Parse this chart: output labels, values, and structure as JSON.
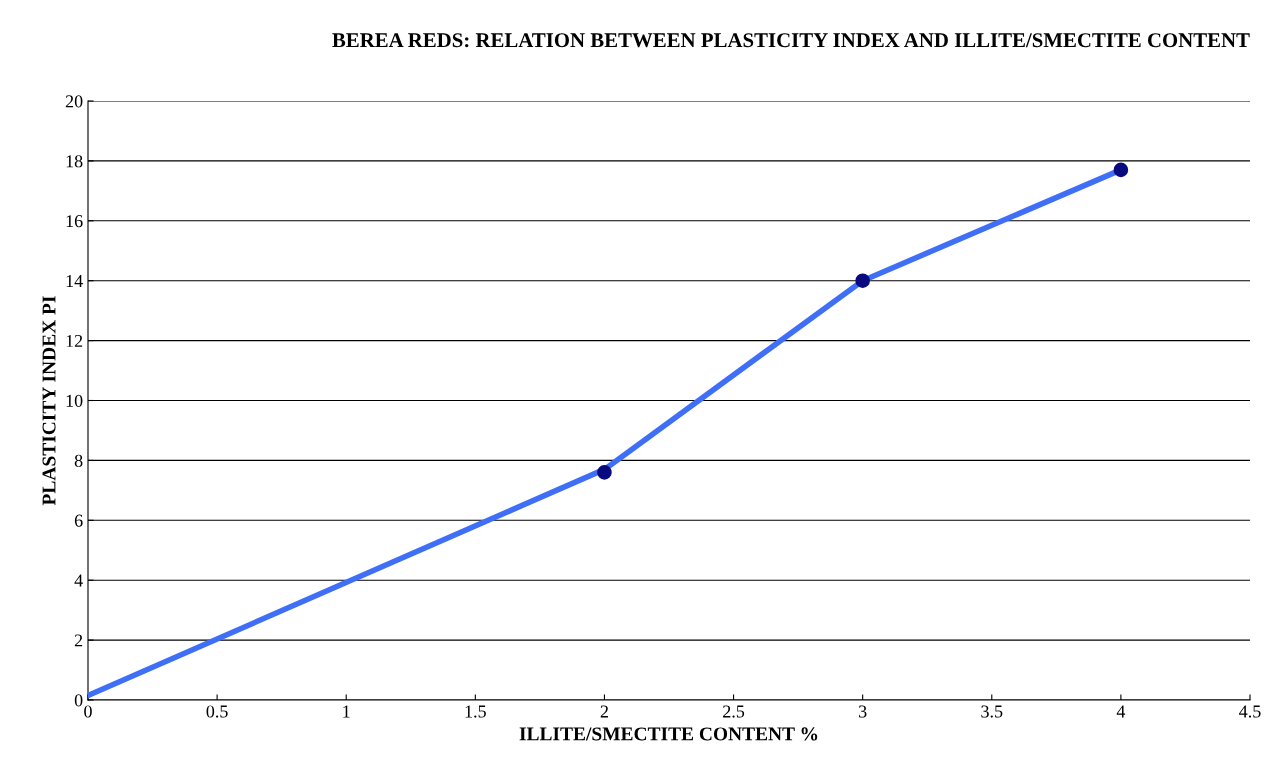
{
  "chart_data": {
    "type": "line",
    "title": "BEREA REDS: RELATION BETWEEN PLASTICITY INDEX AND ILLITE/SMECTITE CONTENT",
    "xlabel": "ILLITE/SMECTITE CONTENT %",
    "ylabel": "PLASTICITY INDEX PI",
    "series": [
      {
        "color": "#3f6ff7",
        "x": [
          0,
          2,
          3,
          4
        ],
        "values": [
          0.15,
          7.7,
          14,
          17.7
        ],
        "marker": "none"
      },
      {
        "type": "scatter",
        "color": "#0a0a80",
        "x": [
          2,
          3,
          4
        ],
        "values": [
          7.6,
          14,
          17.7
        ],
        "marker": "circle"
      }
    ],
    "xlim": [
      0,
      4.5
    ],
    "xticks": [
      0,
      0.5,
      1,
      1.5,
      2,
      2.5,
      3,
      3.5,
      4,
      4.5
    ],
    "ylim": [
      0,
      20
    ],
    "yticks": [
      0,
      2,
      4,
      6,
      8,
      10,
      12,
      14,
      16,
      18,
      20
    ],
    "grid": "y",
    "legend": false
  }
}
